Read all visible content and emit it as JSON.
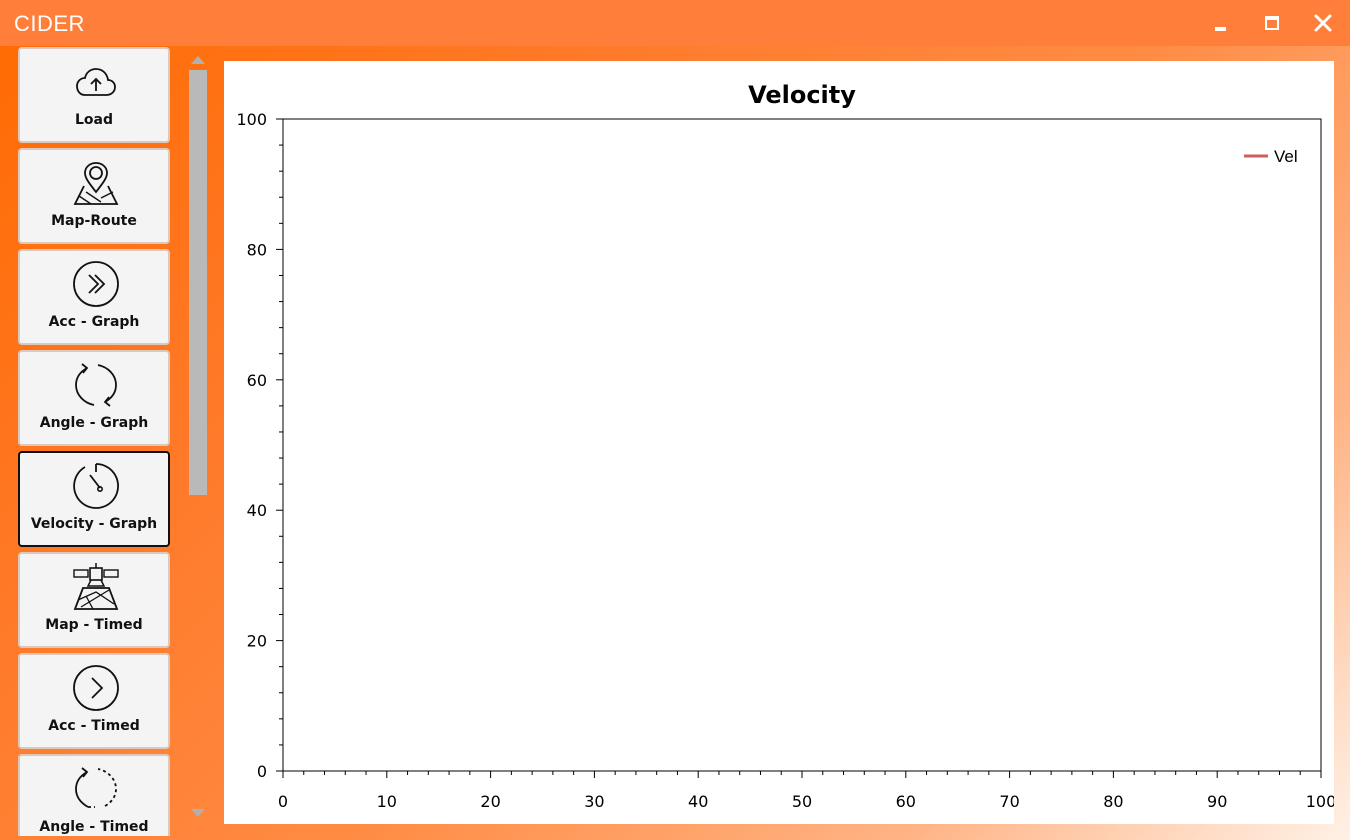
{
  "app": {
    "title": "CIDER"
  },
  "window_controls": [
    {
      "name": "minimize-icon"
    },
    {
      "name": "maximize-icon"
    },
    {
      "name": "close-icon"
    }
  ],
  "sidebar": {
    "items": [
      {
        "label": "Load",
        "icon": "cloud-upload-icon"
      },
      {
        "label": "Map-Route",
        "icon": "map-pin-icon"
      },
      {
        "label": "Acc - Graph",
        "icon": "double-chevron-right-icon"
      },
      {
        "label": "Angle - Graph",
        "icon": "rotate-arrows-icon"
      },
      {
        "label": "Velocity - Graph",
        "icon": "speedometer-icon",
        "active": true
      },
      {
        "label": "Map - Timed",
        "icon": "satellite-map-icon"
      },
      {
        "label": "Acc - Timed",
        "icon": "chevron-right-circle-icon"
      },
      {
        "label": "Angle - Timed",
        "icon": "dashed-rotate-icon"
      }
    ]
  },
  "colors": {
    "accent": "#ff6a00",
    "titlebar": "#ff7f3a",
    "series_vel": "#cd5c5c"
  },
  "chart_data": {
    "type": "line",
    "title": "Velocity",
    "xlabel": "",
    "ylabel": "",
    "xlim": [
      0,
      100
    ],
    "ylim": [
      0,
      100
    ],
    "x_ticks": [
      0,
      10,
      20,
      30,
      40,
      50,
      60,
      70,
      80,
      90,
      100
    ],
    "y_ticks": [
      0,
      20,
      40,
      60,
      80,
      100
    ],
    "grid": false,
    "legend_position": "top-right",
    "series": [
      {
        "name": "Vel",
        "color": "#cd5c5c",
        "x": [],
        "y": []
      }
    ]
  }
}
